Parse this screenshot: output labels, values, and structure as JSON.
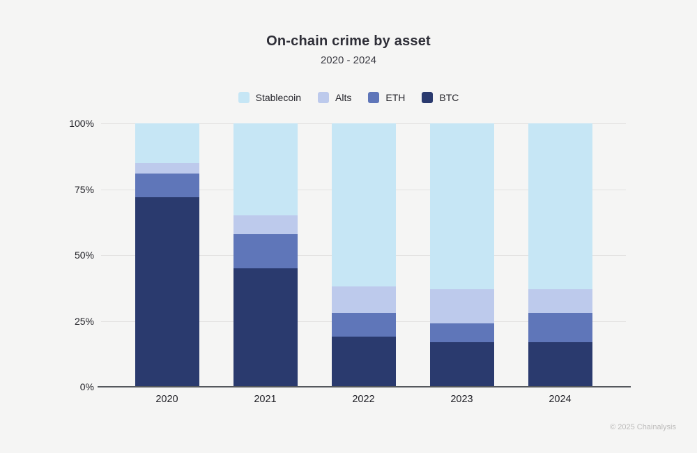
{
  "title": "On-chain crime by asset",
  "subtitle": "2020 - 2024",
  "footer": "© 2025 Chainalysis",
  "colors": {
    "background": "#f5f5f4",
    "gridline": "#e2e1e0",
    "axis_line": "#55585d",
    "stablecoin": "#c6e6f5",
    "alts": "#bdcaec",
    "eth": "#5f76b9",
    "btc": "#2a3a6e"
  },
  "chart_data": {
    "type": "bar",
    "stacked": true,
    "percent_stacked": true,
    "title": "On-chain crime by asset",
    "subtitle": "2020 - 2024",
    "categories": [
      "2020",
      "2021",
      "2022",
      "2023",
      "2024"
    ],
    "series": [
      {
        "name": "BTC",
        "color": "#2a3a6e",
        "values": [
          72,
          45,
          19,
          17,
          17
        ]
      },
      {
        "name": "ETH",
        "color": "#5f76b9",
        "values": [
          9,
          13,
          9,
          7,
          11
        ]
      },
      {
        "name": "Alts",
        "color": "#bdcaec",
        "values": [
          4,
          7,
          10,
          13,
          9
        ]
      },
      {
        "name": "Stablecoin",
        "color": "#c6e6f5",
        "values": [
          15,
          35,
          62,
          63,
          63
        ]
      }
    ],
    "legend_order": [
      "Stablecoin",
      "Alts",
      "ETH",
      "BTC"
    ],
    "legend_position": "top",
    "grid": true,
    "xlabel": "",
    "ylabel": "",
    "ylim": [
      0,
      100
    ],
    "y_ticks": [
      "0%",
      "25%",
      "50%",
      "75%",
      "100%"
    ],
    "y_tick_values": [
      0,
      25,
      50,
      75,
      100
    ]
  }
}
